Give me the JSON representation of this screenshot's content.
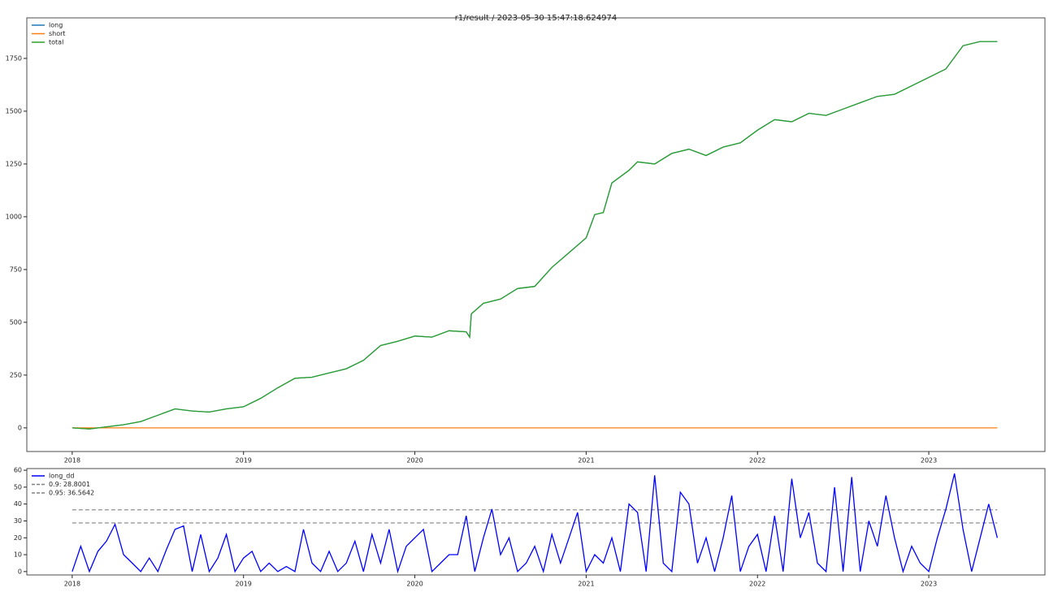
{
  "chart_data": [
    {
      "type": "line",
      "title": "r1/result / 2023-05-30 15:47:18.624974",
      "x": [
        2018.0,
        2018.1,
        2018.2,
        2018.3,
        2018.4,
        2018.5,
        2018.6,
        2018.7,
        2018.8,
        2018.9,
        2019.0,
        2019.1,
        2019.2,
        2019.3,
        2019.4,
        2019.5,
        2019.6,
        2019.7,
        2019.8,
        2019.9,
        2020.0,
        2020.1,
        2020.2,
        2020.3,
        2020.32,
        2020.33,
        2020.4,
        2020.5,
        2020.6,
        2020.7,
        2020.8,
        2020.9,
        2021.0,
        2021.05,
        2021.1,
        2021.15,
        2021.25,
        2021.3,
        2021.4,
        2021.5,
        2021.6,
        2021.7,
        2021.8,
        2021.9,
        2022.0,
        2022.1,
        2022.2,
        2022.3,
        2022.4,
        2022.5,
        2022.6,
        2022.7,
        2022.8,
        2022.9,
        2023.0,
        2023.1,
        2023.2,
        2023.3,
        2023.4
      ],
      "series": [
        {
          "name": "long",
          "color": "#1f77b4",
          "values": [
            0,
            -5,
            5,
            15,
            30,
            60,
            90,
            80,
            75,
            90,
            100,
            140,
            190,
            235,
            240,
            260,
            280,
            320,
            390,
            410,
            435,
            430,
            460,
            455,
            430,
            540,
            590,
            610,
            660,
            670,
            760,
            830,
            900,
            1010,
            1020,
            1160,
            1220,
            1260,
            1250,
            1300,
            1320,
            1290,
            1330,
            1350,
            1410,
            1460,
            1450,
            1490,
            1480,
            1510,
            1540,
            1570,
            1580,
            1620,
            1660,
            1700,
            1810,
            1830,
            1830
          ]
        },
        {
          "name": "short",
          "color": "#ff7f0e",
          "values": [
            0,
            0,
            0,
            0,
            0,
            0,
            0,
            0,
            0,
            0,
            0,
            0,
            0,
            0,
            0,
            0,
            0,
            0,
            0,
            0,
            0,
            0,
            0,
            0,
            0,
            0,
            0,
            0,
            0,
            0,
            0,
            0,
            0,
            0,
            0,
            0,
            0,
            0,
            0,
            0,
            0,
            0,
            0,
            0,
            0,
            0,
            0,
            0,
            0,
            0,
            0,
            0,
            0,
            0,
            0,
            0,
            0,
            0,
            0
          ]
        },
        {
          "name": "total",
          "color": "#2ca02c",
          "values": [
            0,
            -5,
            5,
            15,
            30,
            60,
            90,
            80,
            75,
            90,
            100,
            140,
            190,
            235,
            240,
            260,
            280,
            320,
            390,
            410,
            435,
            430,
            460,
            455,
            430,
            540,
            590,
            610,
            660,
            670,
            760,
            830,
            900,
            1010,
            1020,
            1160,
            1220,
            1260,
            1250,
            1300,
            1320,
            1290,
            1330,
            1350,
            1410,
            1460,
            1450,
            1490,
            1480,
            1510,
            1540,
            1570,
            1580,
            1620,
            1660,
            1700,
            1810,
            1830,
            1830
          ]
        }
      ],
      "xlim": [
        2017.735,
        2023.678
      ],
      "xticks": [
        2018,
        2019,
        2020,
        2021,
        2022,
        2023
      ],
      "ylim": [
        -112,
        1942
      ],
      "yticks": [
        0,
        250,
        500,
        750,
        1000,
        1250,
        1500,
        1750
      ],
      "legend": "upper left"
    },
    {
      "type": "line",
      "x": [
        2018.0,
        2018.05,
        2018.1,
        2018.15,
        2018.2,
        2018.25,
        2018.3,
        2018.35,
        2018.4,
        2018.45,
        2018.5,
        2018.55,
        2018.6,
        2018.65,
        2018.7,
        2018.75,
        2018.8,
        2018.85,
        2018.9,
        2018.95,
        2019.0,
        2019.05,
        2019.1,
        2019.15,
        2019.2,
        2019.25,
        2019.3,
        2019.35,
        2019.4,
        2019.45,
        2019.5,
        2019.55,
        2019.6,
        2019.65,
        2019.7,
        2019.75,
        2019.8,
        2019.85,
        2019.9,
        2019.95,
        2020.0,
        2020.05,
        2020.1,
        2020.15,
        2020.2,
        2020.25,
        2020.3,
        2020.35,
        2020.4,
        2020.45,
        2020.5,
        2020.55,
        2020.6,
        2020.65,
        2020.7,
        2020.75,
        2020.8,
        2020.85,
        2020.9,
        2020.95,
        2021.0,
        2021.05,
        2021.1,
        2021.15,
        2021.2,
        2021.25,
        2021.3,
        2021.35,
        2021.4,
        2021.45,
        2021.5,
        2021.55,
        2021.6,
        2021.65,
        2021.7,
        2021.75,
        2021.8,
        2021.85,
        2021.9,
        2021.95,
        2022.0,
        2022.05,
        2022.1,
        2022.15,
        2022.2,
        2022.25,
        2022.3,
        2022.35,
        2022.4,
        2022.45,
        2022.5,
        2022.55,
        2022.6,
        2022.65,
        2022.7,
        2022.75,
        2022.8,
        2022.85,
        2022.9,
        2022.95,
        2023.0,
        2023.05,
        2023.1,
        2023.15,
        2023.2,
        2023.25,
        2023.3,
        2023.35,
        2023.4
      ],
      "series": [
        {
          "name": "long_dd",
          "color": "#0000ff",
          "values": [
            0,
            15,
            0,
            12,
            18,
            28,
            10,
            5,
            0,
            8,
            0,
            13,
            25,
            27,
            0,
            22,
            0,
            8,
            22,
            0,
            8,
            12,
            0,
            5,
            0,
            3,
            0,
            25,
            5,
            0,
            12,
            0,
            5,
            18,
            0,
            22,
            5,
            25,
            0,
            15,
            20,
            25,
            0,
            5,
            10,
            10,
            33,
            0,
            20,
            37,
            10,
            20,
            0,
            5,
            15,
            0,
            22,
            5,
            20,
            35,
            0,
            10,
            5,
            20,
            0,
            40,
            35,
            0,
            57,
            5,
            0,
            47,
            40,
            5,
            20,
            0,
            20,
            45,
            0,
            15,
            22,
            0,
            33,
            0,
            55,
            20,
            35,
            5,
            0,
            50,
            0,
            56,
            0,
            30,
            15,
            45,
            20,
            0,
            15,
            5,
            0,
            20,
            37,
            58,
            25,
            0,
            20,
            40,
            20
          ]
        }
      ],
      "hlines": [
        {
          "name": "0.9: 28.8001",
          "value": 28.8001,
          "color": "#808080"
        },
        {
          "name": "0.95: 36.5642",
          "value": 36.5642,
          "color": "#808080"
        }
      ],
      "xlim": [
        2017.735,
        2023.678
      ],
      "xticks": [
        2018,
        2019,
        2020,
        2021,
        2022,
        2023
      ],
      "ylim": [
        -2,
        61
      ],
      "yticks": [
        0,
        10,
        20,
        30,
        40,
        50,
        60
      ],
      "legend": "upper left"
    }
  ]
}
